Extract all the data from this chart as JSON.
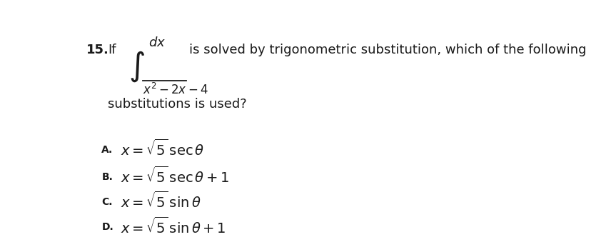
{
  "background_color": "#ffffff",
  "figsize": [
    8.49,
    3.53
  ],
  "dpi": 100,
  "question_number": "15.",
  "question_prefix": "If",
  "question_suffix": "is solved by trigonometric substitution, which of the following",
  "question_suffix2": "substitutions is used?",
  "options": [
    {
      "label": "A.",
      "formula": "$x = \\sqrt{5}\\,\\sec\\theta$"
    },
    {
      "label": "B.",
      "formula": "$x = \\sqrt{5}\\,\\sec\\theta + 1$"
    },
    {
      "label": "C.",
      "formula": "$x = \\sqrt{5}\\,\\sin\\theta$"
    },
    {
      "label": "D.",
      "formula": "$x = \\sqrt{5}\\,\\sin\\theta + 1$"
    }
  ],
  "font_size_main": 13,
  "font_size_options": 14,
  "font_size_label": 10,
  "text_color": "#1a1a1a"
}
